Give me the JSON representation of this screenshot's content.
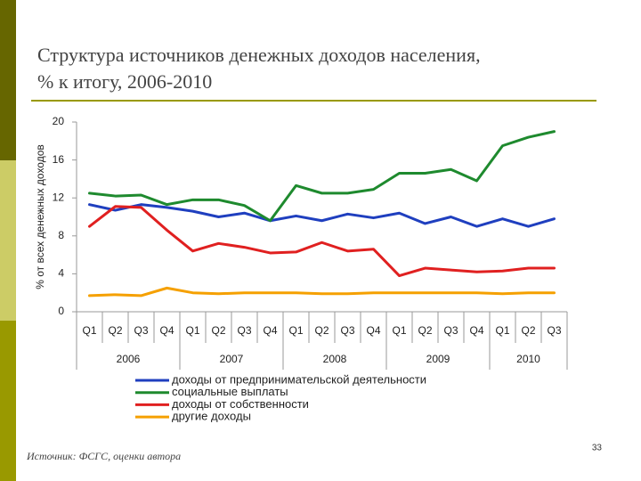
{
  "slide": {
    "title_line1": "Структура источников денежных доходов населения,",
    "title_line2": "% к итогу, 2006-2010",
    "source": "Источник: ФСГС, оценки автора",
    "page_number": "33"
  },
  "chart_data": {
    "type": "line",
    "ylabel": "% от всех денежных доходов",
    "categories": [
      "Q1",
      "Q2",
      "Q3",
      "Q4",
      "Q1",
      "Q2",
      "Q3",
      "Q4",
      "Q1",
      "Q2",
      "Q3",
      "Q4",
      "Q1",
      "Q2",
      "Q3",
      "Q4",
      "Q1",
      "Q2",
      "Q3"
    ],
    "year_groups": [
      {
        "label": "2006",
        "count": 4
      },
      {
        "label": "2007",
        "count": 4
      },
      {
        "label": "2008",
        "count": 4
      },
      {
        "label": "2009",
        "count": 4
      },
      {
        "label": "2010",
        "count": 3
      }
    ],
    "ylim": [
      0,
      20
    ],
    "yticks": [
      0,
      4,
      8,
      12,
      16,
      20
    ],
    "grid": false,
    "legend": "bottom",
    "series": [
      {
        "name": "доходы от предпринимательской деятельности",
        "color": "#1f3fbf",
        "values": [
          11.3,
          10.7,
          11.3,
          11.0,
          10.6,
          10.0,
          10.4,
          9.6,
          10.1,
          9.6,
          10.3,
          9.9,
          10.4,
          9.3,
          10.0,
          9.0,
          9.8,
          9.0,
          9.8
        ]
      },
      {
        "name": "социальные выплаты",
        "color": "#1e8a2e",
        "values": [
          12.5,
          12.2,
          12.3,
          11.3,
          11.8,
          11.8,
          11.2,
          9.6,
          13.3,
          12.5,
          12.5,
          12.9,
          14.6,
          14.6,
          15.0,
          13.8,
          17.5,
          18.4,
          19.0
        ]
      },
      {
        "name": "доходы от собственности",
        "color": "#e02020",
        "values": [
          9.0,
          11.1,
          11.0,
          8.6,
          6.4,
          7.2,
          6.8,
          6.2,
          6.3,
          7.3,
          6.4,
          6.6,
          3.8,
          4.6,
          4.4,
          4.2,
          4.3,
          4.6,
          4.6
        ]
      },
      {
        "name": "другие доходы",
        "color": "#f5a000",
        "values": [
          1.7,
          1.8,
          1.7,
          2.5,
          2.0,
          1.9,
          2.0,
          2.0,
          2.0,
          1.9,
          1.9,
          2.0,
          2.0,
          2.0,
          2.0,
          2.0,
          1.9,
          2.0,
          2.0
        ]
      }
    ]
  }
}
